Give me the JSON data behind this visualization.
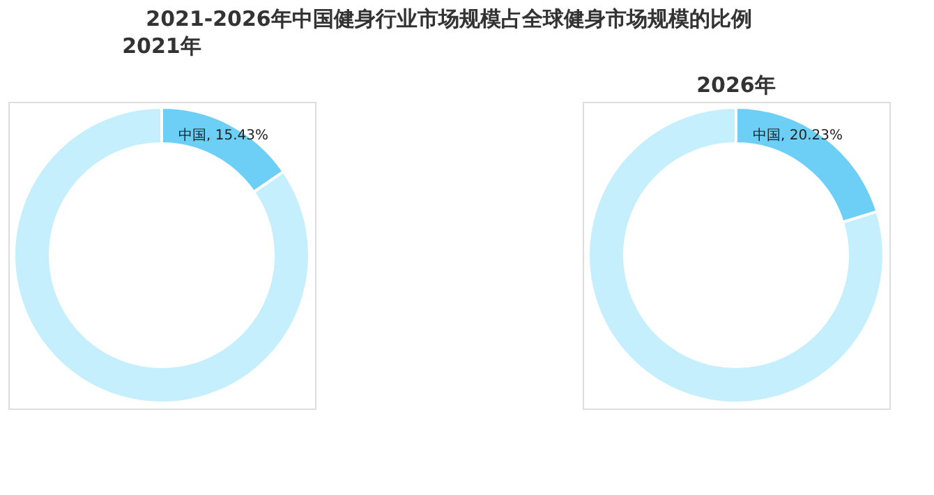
{
  "chart_data": [
    {
      "type": "other",
      "title": "2021-2026年中国健身行业市场规模占全球健身市场规模的比例"
    },
    {
      "type": "donut",
      "title": "2021年",
      "categories": [
        "中国",
        null
      ],
      "values": [
        15.43,
        84.57
      ],
      "colors": [
        "#6dcff6",
        "#c5effd"
      ],
      "value_labels": [
        "15.43%",
        null
      ],
      "legend": false
    },
    {
      "type": "donut",
      "title": "2026年",
      "categories": [
        "中国",
        null
      ],
      "values": [
        20.23,
        79.77
      ],
      "colors": [
        "#6dcff6",
        "#c5effd"
      ],
      "value_labels": [
        "20.23%",
        null
      ],
      "legend": false
    }
  ]
}
